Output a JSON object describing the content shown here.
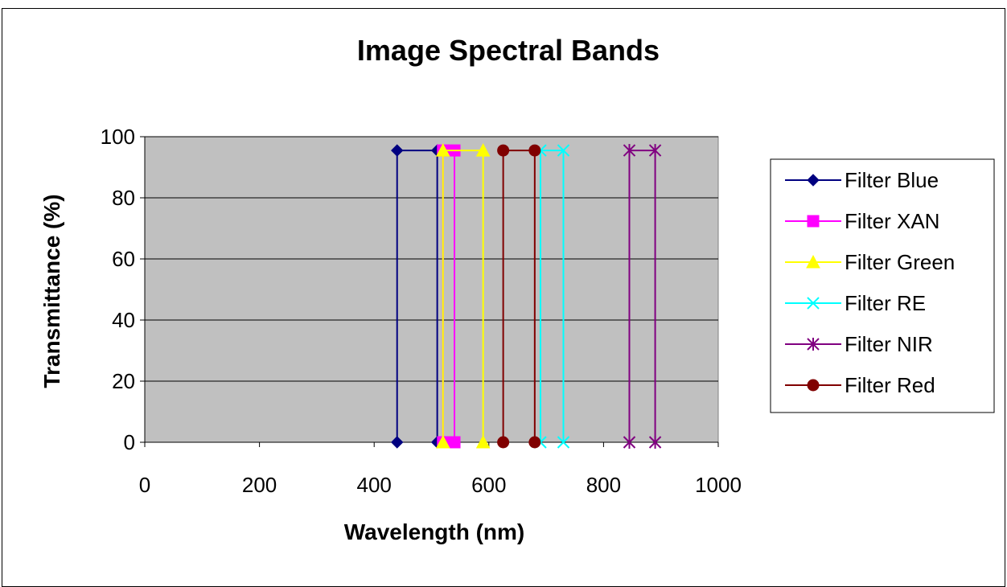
{
  "chart_data": {
    "type": "line",
    "title": "Image Spectral Bands",
    "xlabel": "Wavelength (nm)",
    "ylabel": "Transmittance (%)",
    "xlim": [
      0,
      1000
    ],
    "ylim": [
      0,
      100
    ],
    "xticks": [
      0,
      200,
      400,
      600,
      800,
      1000
    ],
    "yticks": [
      0,
      20,
      40,
      60,
      80,
      100
    ],
    "grid": "horizontal",
    "plot_background": "#c0c0c0",
    "legend_position": "right",
    "series": [
      {
        "name": "Filter Blue",
        "color": "#000080",
        "marker": "diamond",
        "x": [
          440,
          440,
          510,
          510
        ],
        "y": [
          0,
          95.5,
          95.5,
          0
        ]
      },
      {
        "name": "Filter XAN",
        "color": "#ff00ff",
        "marker": "square",
        "x": [
          520,
          520,
          540,
          540
        ],
        "y": [
          0,
          95.5,
          95.5,
          0
        ]
      },
      {
        "name": "Filter Green",
        "color": "#ffff00",
        "marker": "triangle",
        "x": [
          520,
          520,
          590,
          590
        ],
        "y": [
          0,
          95.5,
          95.5,
          0
        ]
      },
      {
        "name": "Filter RE",
        "color": "#00ffff",
        "marker": "x",
        "x": [
          690,
          690,
          730,
          730
        ],
        "y": [
          0,
          95.5,
          95.5,
          0
        ]
      },
      {
        "name": "Filter NIR",
        "color": "#800080",
        "marker": "star",
        "x": [
          845,
          845,
          890,
          890
        ],
        "y": [
          0,
          95.5,
          95.5,
          0
        ]
      },
      {
        "name": "Filter Red",
        "color": "#800000",
        "marker": "circle",
        "x": [
          625,
          625,
          680,
          680
        ],
        "y": [
          0,
          95.5,
          95.5,
          0
        ]
      }
    ]
  }
}
